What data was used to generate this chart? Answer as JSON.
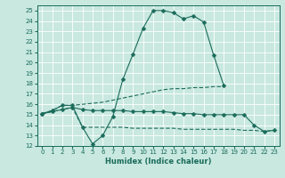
{
  "title": "",
  "xlabel": "Humidex (Indice chaleur)",
  "xlim": [
    -0.5,
    23.5
  ],
  "ylim": [
    12,
    25.5
  ],
  "yticks": [
    12,
    13,
    14,
    15,
    16,
    17,
    18,
    19,
    20,
    21,
    22,
    23,
    24,
    25
  ],
  "xticks": [
    0,
    1,
    2,
    3,
    4,
    5,
    6,
    7,
    8,
    9,
    10,
    11,
    12,
    13,
    14,
    15,
    16,
    17,
    18,
    19,
    20,
    21,
    22,
    23
  ],
  "bg_color": "#c8e8e0",
  "grid_color": "#b0d8d0",
  "line_color": "#1a6b5a",
  "lines": [
    {
      "x": [
        0,
        1,
        2,
        3,
        4,
        5,
        6,
        7,
        8,
        9,
        10,
        11,
        12,
        13,
        14,
        15,
        16,
        17,
        18
      ],
      "y": [
        15.1,
        15.4,
        15.9,
        15.9,
        13.8,
        12.2,
        13.0,
        14.8,
        18.4,
        20.8,
        23.3,
        25.0,
        25.0,
        24.8,
        24.2,
        24.5,
        23.9,
        20.7,
        17.8
      ],
      "marker": "D",
      "markersize": 2.5,
      "linestyle": "-"
    },
    {
      "x": [
        0,
        1,
        2,
        3,
        4,
        5,
        6,
        7,
        8,
        9,
        10,
        11,
        12,
        13,
        14,
        15,
        16,
        17,
        18
      ],
      "y": [
        15.1,
        15.4,
        15.9,
        15.9,
        16.0,
        16.1,
        16.2,
        16.4,
        16.6,
        16.8,
        17.0,
        17.2,
        17.4,
        17.5,
        17.5,
        17.6,
        17.6,
        17.7,
        17.7
      ],
      "marker": null,
      "markersize": 0,
      "linestyle": "--"
    },
    {
      "x": [
        0,
        1,
        2,
        3,
        4,
        5,
        6,
        7,
        8,
        9,
        10,
        11,
        12,
        13,
        14,
        15,
        16,
        17,
        18,
        19,
        20,
        21,
        22,
        23
      ],
      "y": [
        15.1,
        15.3,
        15.5,
        15.7,
        15.5,
        15.4,
        15.4,
        15.4,
        15.4,
        15.3,
        15.3,
        15.3,
        15.3,
        15.2,
        15.1,
        15.1,
        15.0,
        15.0,
        15.0,
        15.0,
        15.0,
        14.0,
        13.4,
        13.5
      ],
      "marker": "D",
      "markersize": 2.5,
      "linestyle": "-"
    },
    {
      "x": [
        0,
        1,
        2,
        3,
        4,
        5,
        6,
        7,
        8,
        9,
        10,
        11,
        12,
        13,
        14,
        15,
        16,
        17,
        18,
        19,
        20,
        21,
        22,
        23
      ],
      "y": [
        15.1,
        15.3,
        15.5,
        15.7,
        13.8,
        13.8,
        13.8,
        13.8,
        13.8,
        13.7,
        13.7,
        13.7,
        13.7,
        13.7,
        13.6,
        13.6,
        13.6,
        13.6,
        13.6,
        13.6,
        13.5,
        13.5,
        13.4,
        13.5
      ],
      "marker": null,
      "markersize": 0,
      "linestyle": "--"
    }
  ]
}
